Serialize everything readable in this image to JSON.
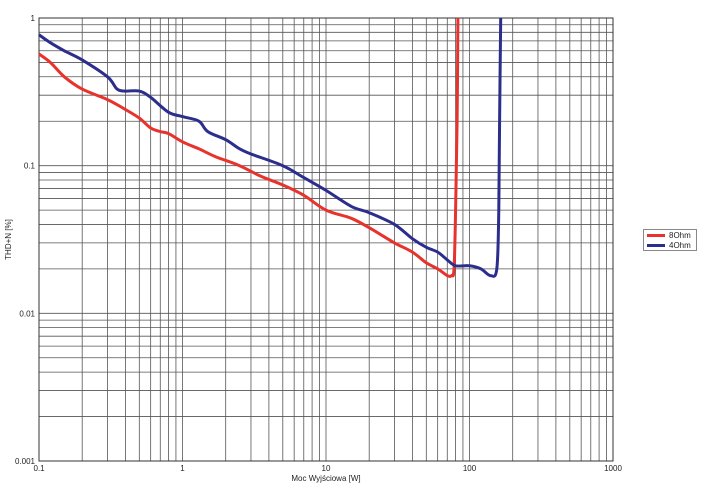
{
  "chart_data": {
    "type": "line",
    "title": "",
    "xlabel": "Moc Wyjściowa [W]",
    "ylabel": "THD+N [%]",
    "xscale": "log",
    "yscale": "log",
    "xlim": [
      0.1,
      1000
    ],
    "ylim": [
      0.001,
      1
    ],
    "grid": true,
    "legend_position": "right",
    "x_tick_labels": [
      "0.1",
      "1",
      "10",
      "100",
      "1000"
    ],
    "y_tick_labels": [
      "0.001",
      "0.01",
      "0.1",
      "1"
    ],
    "series": [
      {
        "name": "8Ohm",
        "color": "#e8322c",
        "points": [
          [
            0.1,
            0.57
          ],
          [
            0.12,
            0.5
          ],
          [
            0.15,
            0.4
          ],
          [
            0.2,
            0.33
          ],
          [
            0.3,
            0.28
          ],
          [
            0.4,
            0.24
          ],
          [
            0.5,
            0.21
          ],
          [
            0.6,
            0.18
          ],
          [
            0.7,
            0.17
          ],
          [
            0.8,
            0.165
          ],
          [
            1.0,
            0.145
          ],
          [
            1.3,
            0.13
          ],
          [
            1.7,
            0.115
          ],
          [
            2.5,
            0.1
          ],
          [
            3.5,
            0.085
          ],
          [
            5,
            0.074
          ],
          [
            7,
            0.063
          ],
          [
            10,
            0.05
          ],
          [
            15,
            0.044
          ],
          [
            20,
            0.038
          ],
          [
            30,
            0.03
          ],
          [
            40,
            0.026
          ],
          [
            50,
            0.022
          ],
          [
            60,
            0.02
          ],
          [
            70,
            0.018
          ],
          [
            75,
            0.018
          ],
          [
            78,
            0.02
          ],
          [
            80,
            0.05
          ],
          [
            82,
            0.2
          ],
          [
            83,
            1.0
          ]
        ]
      },
      {
        "name": "4Ohm",
        "color": "#2b2e8c",
        "points": [
          [
            0.1,
            0.77
          ],
          [
            0.12,
            0.68
          ],
          [
            0.15,
            0.6
          ],
          [
            0.2,
            0.52
          ],
          [
            0.3,
            0.4
          ],
          [
            0.35,
            0.33
          ],
          [
            0.4,
            0.32
          ],
          [
            0.5,
            0.32
          ],
          [
            0.6,
            0.29
          ],
          [
            0.8,
            0.23
          ],
          [
            1.0,
            0.215
          ],
          [
            1.3,
            0.2
          ],
          [
            1.5,
            0.17
          ],
          [
            2.0,
            0.15
          ],
          [
            2.5,
            0.13
          ],
          [
            3,
            0.12
          ],
          [
            5,
            0.1
          ],
          [
            7,
            0.083
          ],
          [
            10,
            0.068
          ],
          [
            15,
            0.053
          ],
          [
            20,
            0.048
          ],
          [
            30,
            0.04
          ],
          [
            40,
            0.032
          ],
          [
            50,
            0.028
          ],
          [
            60,
            0.026
          ],
          [
            70,
            0.023
          ],
          [
            80,
            0.021
          ],
          [
            100,
            0.021
          ],
          [
            120,
            0.02
          ],
          [
            140,
            0.018
          ],
          [
            155,
            0.02
          ],
          [
            160,
            0.05
          ],
          [
            162,
            0.2
          ],
          [
            165,
            1.0
          ]
        ]
      }
    ]
  }
}
